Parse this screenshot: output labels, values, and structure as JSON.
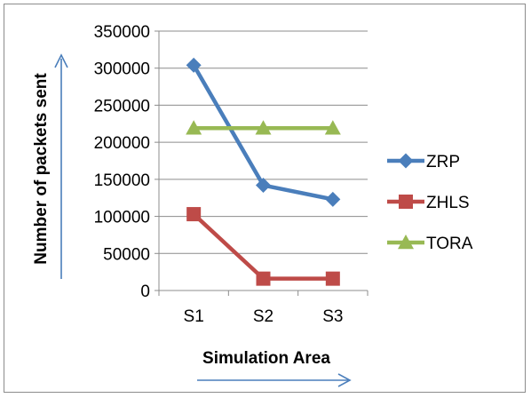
{
  "chart_data": {
    "type": "line",
    "categories": [
      "S1",
      "S2",
      "S3"
    ],
    "series": [
      {
        "name": "ZRP",
        "values": [
          304000,
          142000,
          123000
        ],
        "color": "#4A7EBB",
        "marker": "diamond"
      },
      {
        "name": "ZHLS",
        "values": [
          103000,
          16000,
          16000
        ],
        "color": "#BE4B48",
        "marker": "square"
      },
      {
        "name": "TORA",
        "values": [
          219000,
          219000,
          219000
        ],
        "color": "#98B954",
        "marker": "triangle"
      }
    ],
    "ylim": [
      0,
      350000
    ],
    "yticks": [
      "0",
      "50000",
      "100000",
      "150000",
      "200000",
      "250000",
      "300000",
      "350000"
    ],
    "xlabel": "Simulation Area",
    "ylabel": "Number of packets sent",
    "grid": true,
    "legend": "right",
    "axis_arrow_color": "#4A7EBB"
  }
}
